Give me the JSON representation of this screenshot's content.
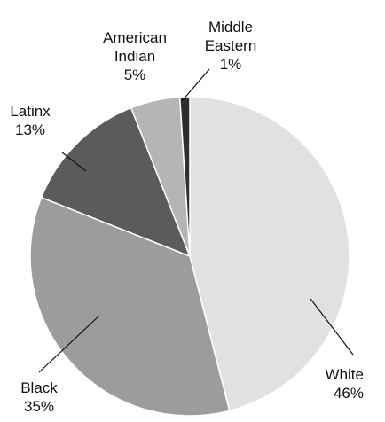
{
  "chart_data": {
    "type": "pie",
    "slices": [
      {
        "name": "White",
        "value": 46,
        "label_lines": [
          "White",
          "46%"
        ],
        "color": "#e1e1e1"
      },
      {
        "name": "Black",
        "value": 35,
        "label_lines": [
          "Black",
          "35%"
        ],
        "color": "#9c9c9c"
      },
      {
        "name": "Latinx",
        "value": 13,
        "label_lines": [
          "Latinx",
          "13%"
        ],
        "color": "#5b5b5b"
      },
      {
        "name": "American Indian",
        "value": 5,
        "label_lines": [
          "American",
          "Indian",
          "5%"
        ],
        "color": "#b5b5b5"
      },
      {
        "name": "Middle Eastern",
        "value": 1,
        "label_lines": [
          "Middle",
          "Eastern",
          "1%"
        ],
        "color": "#2f2f2f"
      }
    ]
  }
}
